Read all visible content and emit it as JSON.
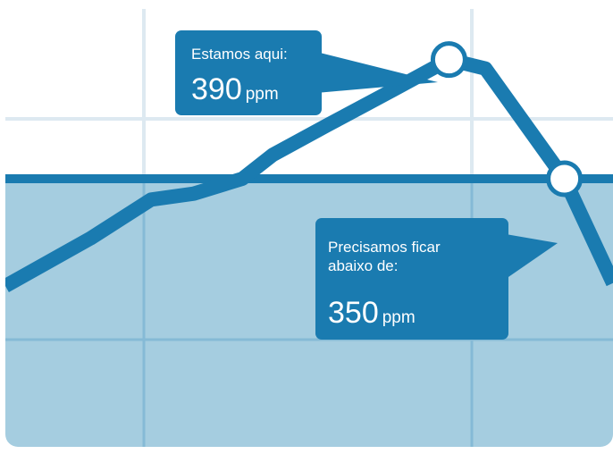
{
  "colors": {
    "line": "#1a7bb0",
    "fill_below_target": "#a5cde0",
    "grid": "#dde9f1",
    "grid_in_fill": "#85bad6",
    "marker_fill": "#ffffff",
    "background": "#ffffff"
  },
  "callouts": {
    "current": {
      "label": "Estamos aqui:",
      "value": "390",
      "unit": "ppm"
    },
    "target": {
      "label": "Precisamos ficar abaixo de:",
      "value": "350",
      "unit": "ppm"
    }
  },
  "chart_data": {
    "type": "line",
    "title": "",
    "xlabel": "",
    "ylabel": "",
    "grid": true,
    "legend": "none",
    "ylim": [
      260,
      410
    ],
    "xlim": [
      0,
      10
    ],
    "threshold": {
      "value": 350,
      "shade": "below"
    },
    "series": [
      {
        "x": [
          0,
          1.4,
          2.4,
          3.1,
          3.9,
          4.4,
          5.3,
          6.4,
          7.3,
          7.9,
          9.2,
          10.0
        ],
        "y": [
          314,
          330,
          343,
          345,
          350,
          358,
          368,
          380,
          390,
          387,
          350,
          315
        ]
      }
    ],
    "highlights": [
      {
        "x": 7.3,
        "y": 390
      },
      {
        "x": 9.2,
        "y": 350
      }
    ]
  }
}
